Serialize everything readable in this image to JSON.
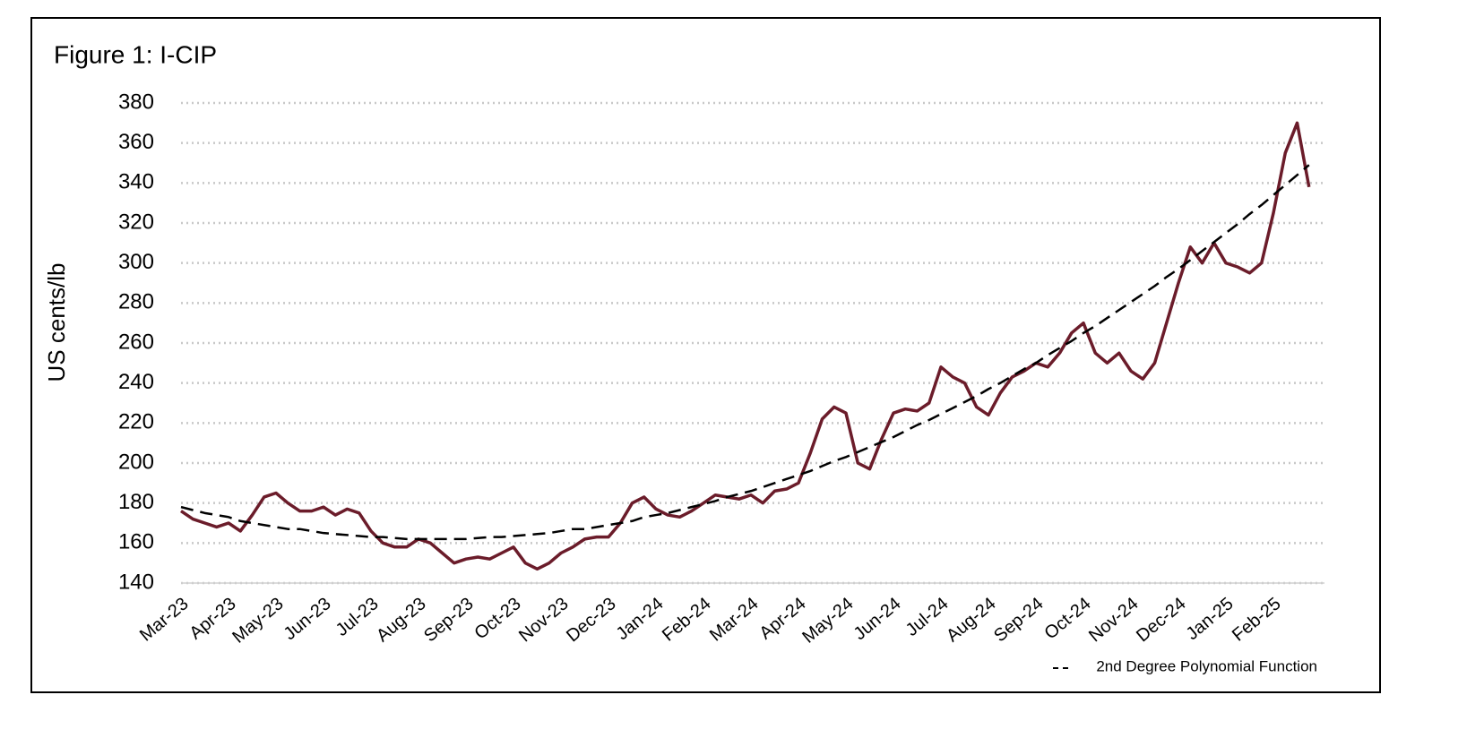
{
  "chart_data": {
    "type": "line",
    "title": "Figure 1: I-CIP",
    "y_label": "US cents/lb",
    "categories": [
      "Mar-23",
      null,
      null,
      null,
      "Apr-23",
      null,
      null,
      null,
      "May-23",
      null,
      null,
      null,
      "Jun-23",
      null,
      null,
      null,
      "Jul-23",
      null,
      null,
      null,
      "Aug-23",
      null,
      null,
      null,
      "Sep-23",
      null,
      null,
      null,
      "Oct-23",
      null,
      null,
      null,
      "Nov-23",
      null,
      null,
      null,
      "Dec-23",
      null,
      null,
      null,
      "Jan-24",
      null,
      null,
      null,
      "Feb-24",
      null,
      null,
      null,
      "Mar-24",
      null,
      null,
      null,
      "Apr-24",
      null,
      null,
      null,
      "May-24",
      null,
      null,
      null,
      "Jun-24",
      null,
      null,
      null,
      "Jul-24",
      null,
      null,
      null,
      "Aug-24",
      null,
      null,
      null,
      "Sep-24",
      null,
      null,
      null,
      "Oct-24",
      null,
      null,
      null,
      "Nov-24",
      null,
      null,
      null,
      "Dec-24",
      null,
      null,
      null,
      "Jan-25",
      null,
      null,
      null,
      "Feb-25",
      null,
      null,
      null
    ],
    "series": [
      {
        "color": "#6b1c2a",
        "style": "solid",
        "values": [
          176,
          172,
          170,
          168,
          170,
          166,
          174,
          183,
          185,
          180,
          176,
          176,
          178,
          174,
          177,
          175,
          166,
          160,
          158,
          158,
          162,
          160,
          155,
          150,
          152,
          153,
          152,
          155,
          158,
          150,
          147,
          150,
          155,
          158,
          162,
          163,
          163,
          170,
          180,
          183,
          177,
          174,
          173,
          176,
          180,
          184,
          183,
          182,
          184,
          180,
          186,
          187,
          190,
          205,
          222,
          228,
          225,
          200,
          197,
          212,
          225,
          227,
          226,
          230,
          248,
          243,
          240,
          228,
          224,
          235,
          243,
          246,
          250,
          248,
          255,
          265,
          270,
          255,
          250,
          255,
          246,
          242,
          250,
          270,
          290,
          308,
          300,
          310,
          300,
          298,
          295,
          300,
          325,
          355,
          370,
          338
        ]
      },
      {
        "name": "2nd Degree Polynomial Function",
        "color": "#000000",
        "style": "dashed",
        "values": [
          178,
          176.5,
          175,
          174,
          173,
          171,
          170,
          169,
          168,
          167,
          167,
          166,
          165,
          164.5,
          164,
          163.5,
          163,
          163,
          162.5,
          162,
          162,
          162,
          162,
          162,
          162,
          162.5,
          163,
          163,
          163.5,
          164,
          164.5,
          165,
          166,
          167,
          167,
          168,
          169,
          170,
          171,
          173,
          174,
          175,
          176.5,
          178,
          179.5,
          181,
          183,
          184.5,
          186,
          188,
          190,
          192,
          194,
          196,
          198.5,
          201,
          203,
          205.5,
          208,
          210.5,
          213,
          216,
          219,
          221.5,
          224.5,
          227.5,
          230.5,
          233.5,
          237,
          240,
          243.5,
          247,
          250,
          254,
          257.5,
          261,
          265,
          268.5,
          272.5,
          276.5,
          280.5,
          284.5,
          288.5,
          293,
          297,
          301.5,
          306,
          310.5,
          315,
          319.5,
          324.5,
          329,
          334,
          339,
          344,
          349
        ]
      }
    ],
    "ylim": [
      140,
      380
    ],
    "yticks": [
      140,
      160,
      180,
      200,
      220,
      240,
      260,
      280,
      300,
      320,
      340,
      360,
      380
    ],
    "grid": true,
    "legend": "lower right"
  }
}
